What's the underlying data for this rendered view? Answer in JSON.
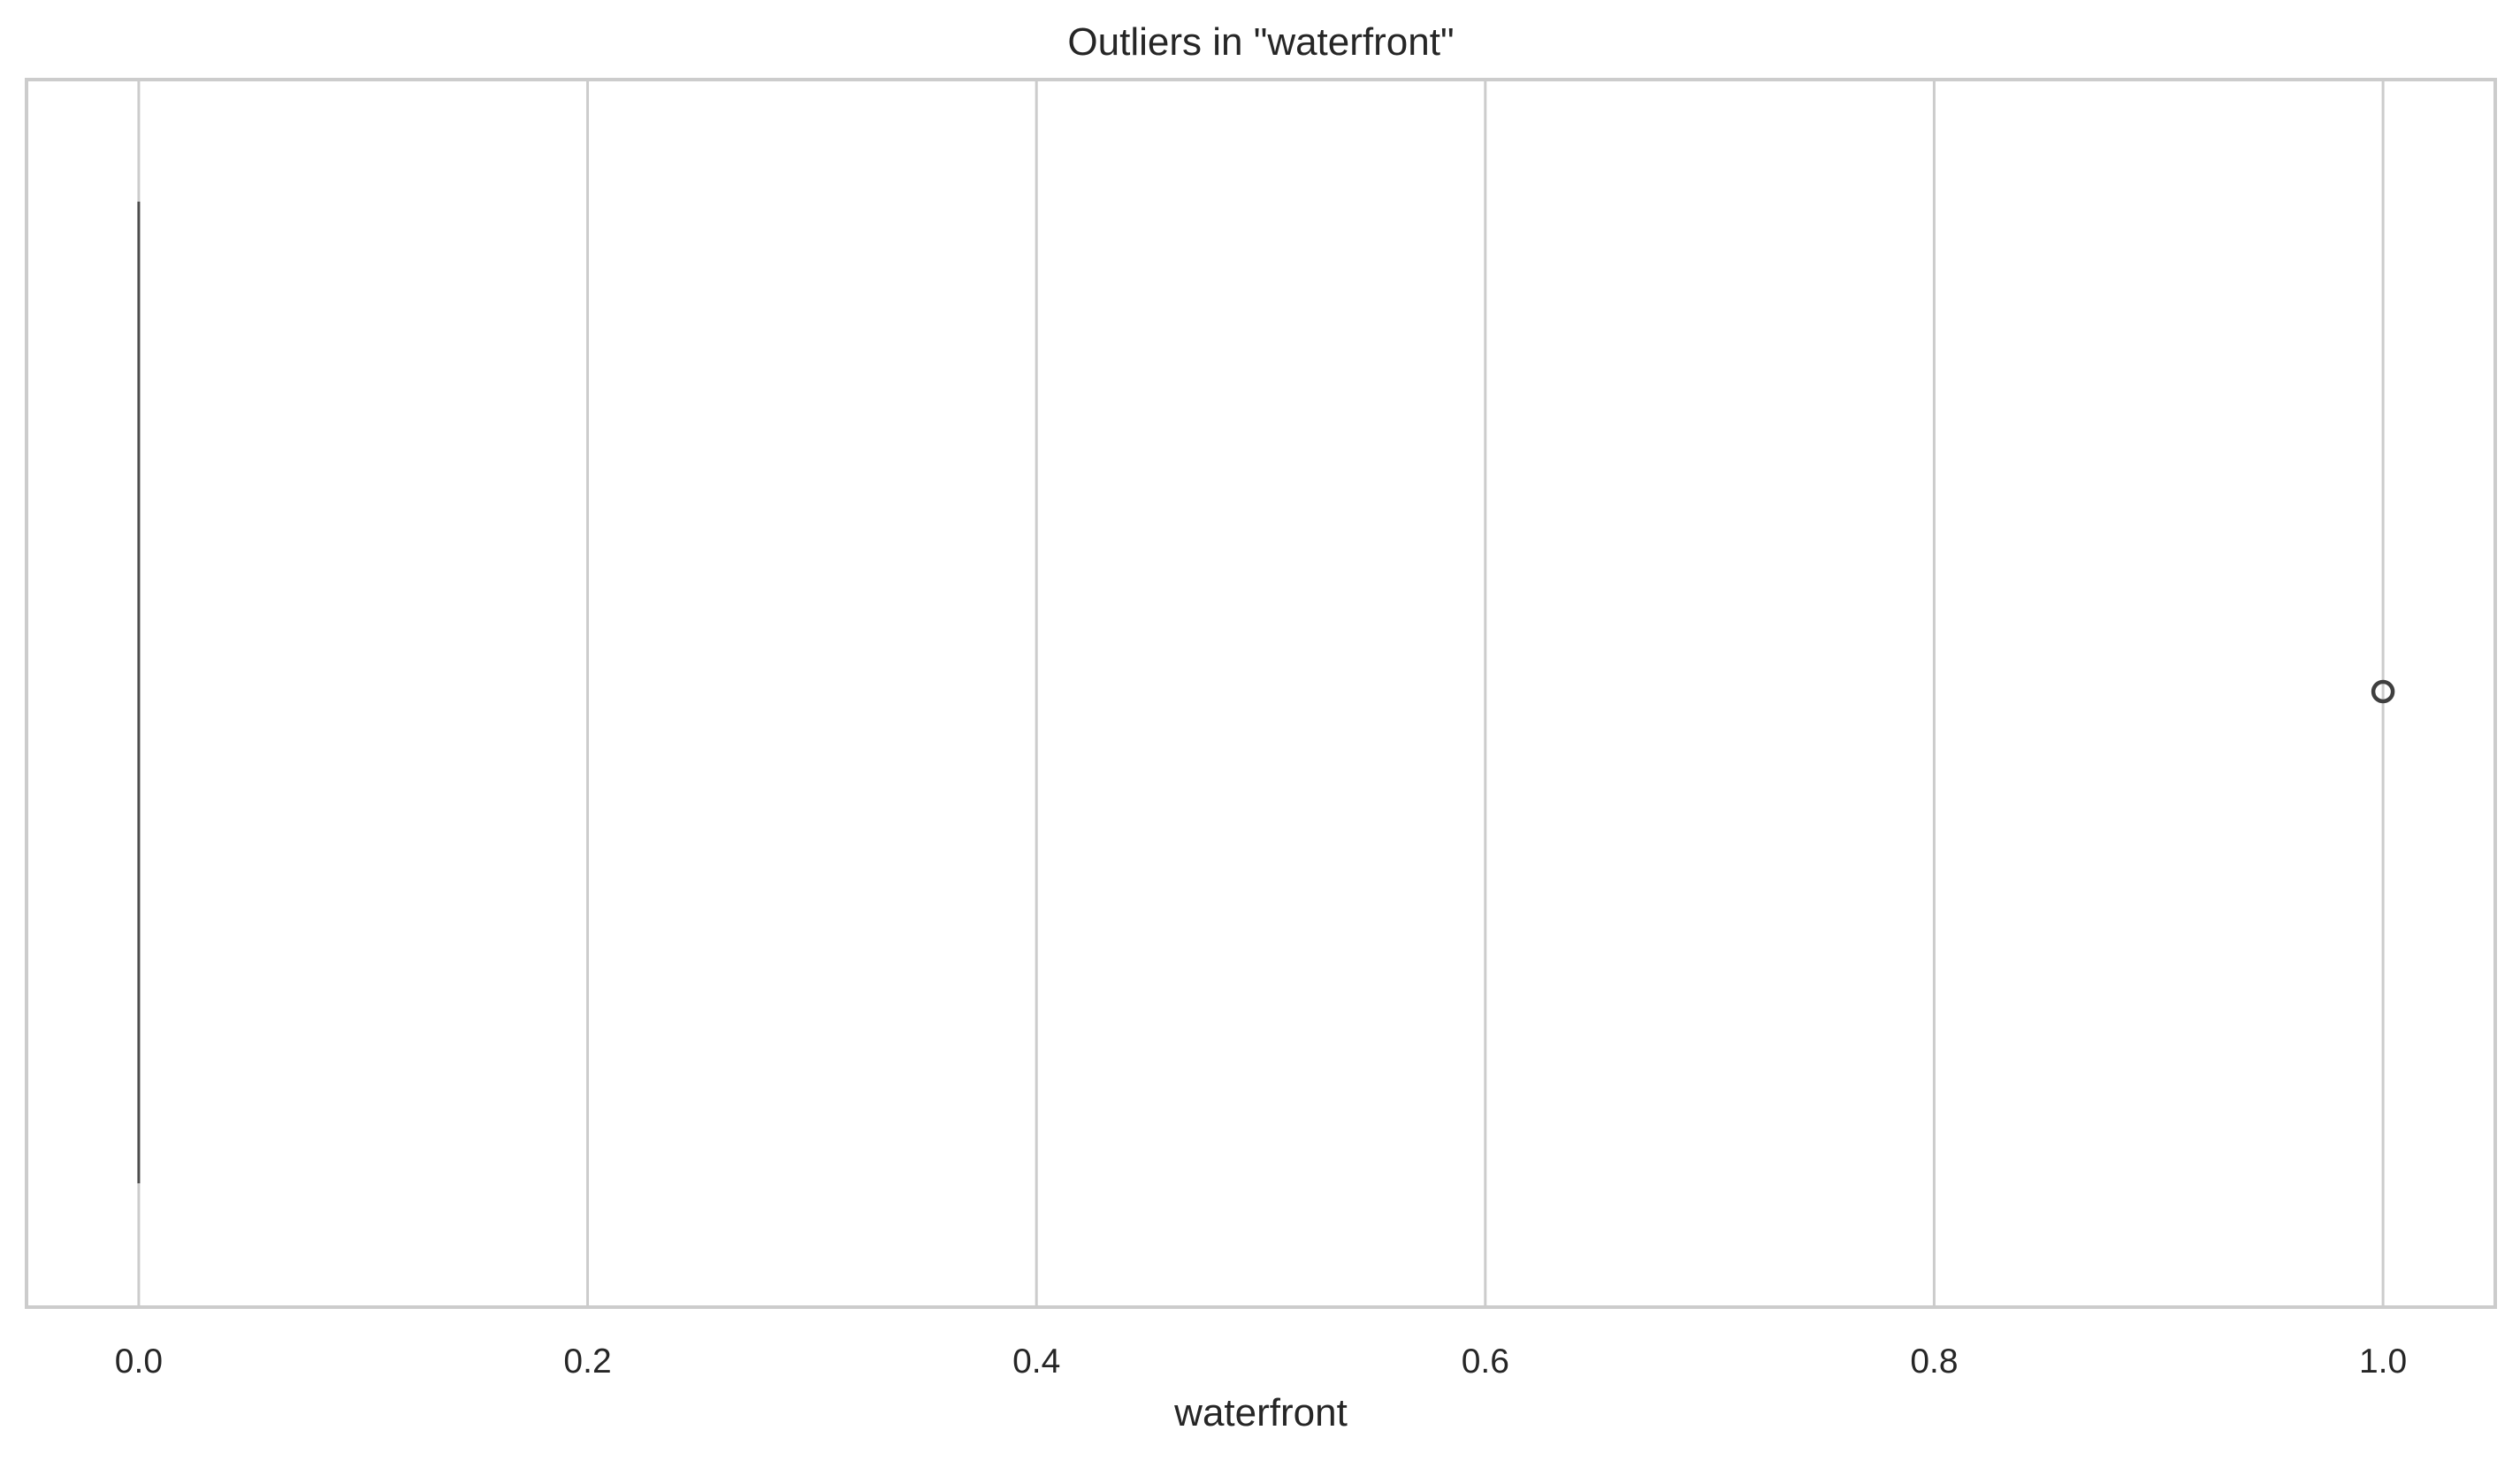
{
  "chart_data": {
    "type": "box",
    "orientation": "horizontal",
    "title": "Outliers in \"waterfront\"",
    "xlabel": "waterfront",
    "ylabel": "",
    "xlim": [
      -0.05,
      1.05
    ],
    "xticks": [
      0.0,
      0.2,
      0.4,
      0.6,
      0.8,
      1.0
    ],
    "xtick_labels": [
      "0.0",
      "0.2",
      "0.4",
      "0.6",
      "0.8",
      "1.0"
    ],
    "grid": true,
    "box": {
      "min": 0.0,
      "q1": 0.0,
      "median": 0.0,
      "q3": 0.0,
      "max": 0.0
    },
    "outliers": [
      1.0
    ],
    "colors": {
      "grid": "#cccccc",
      "frame": "#cccccc",
      "box_line": "#4d4d4d",
      "outlier_edge": "#3f3f3f",
      "text": "#262626"
    }
  }
}
